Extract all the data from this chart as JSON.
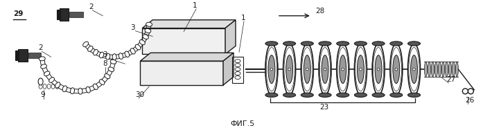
{
  "bg_color": "#ffffff",
  "fig_label": "ФИГ.5",
  "black": "#1a1a1a",
  "dark": "#333333",
  "gray": "#888888",
  "lgray": "#cccccc"
}
